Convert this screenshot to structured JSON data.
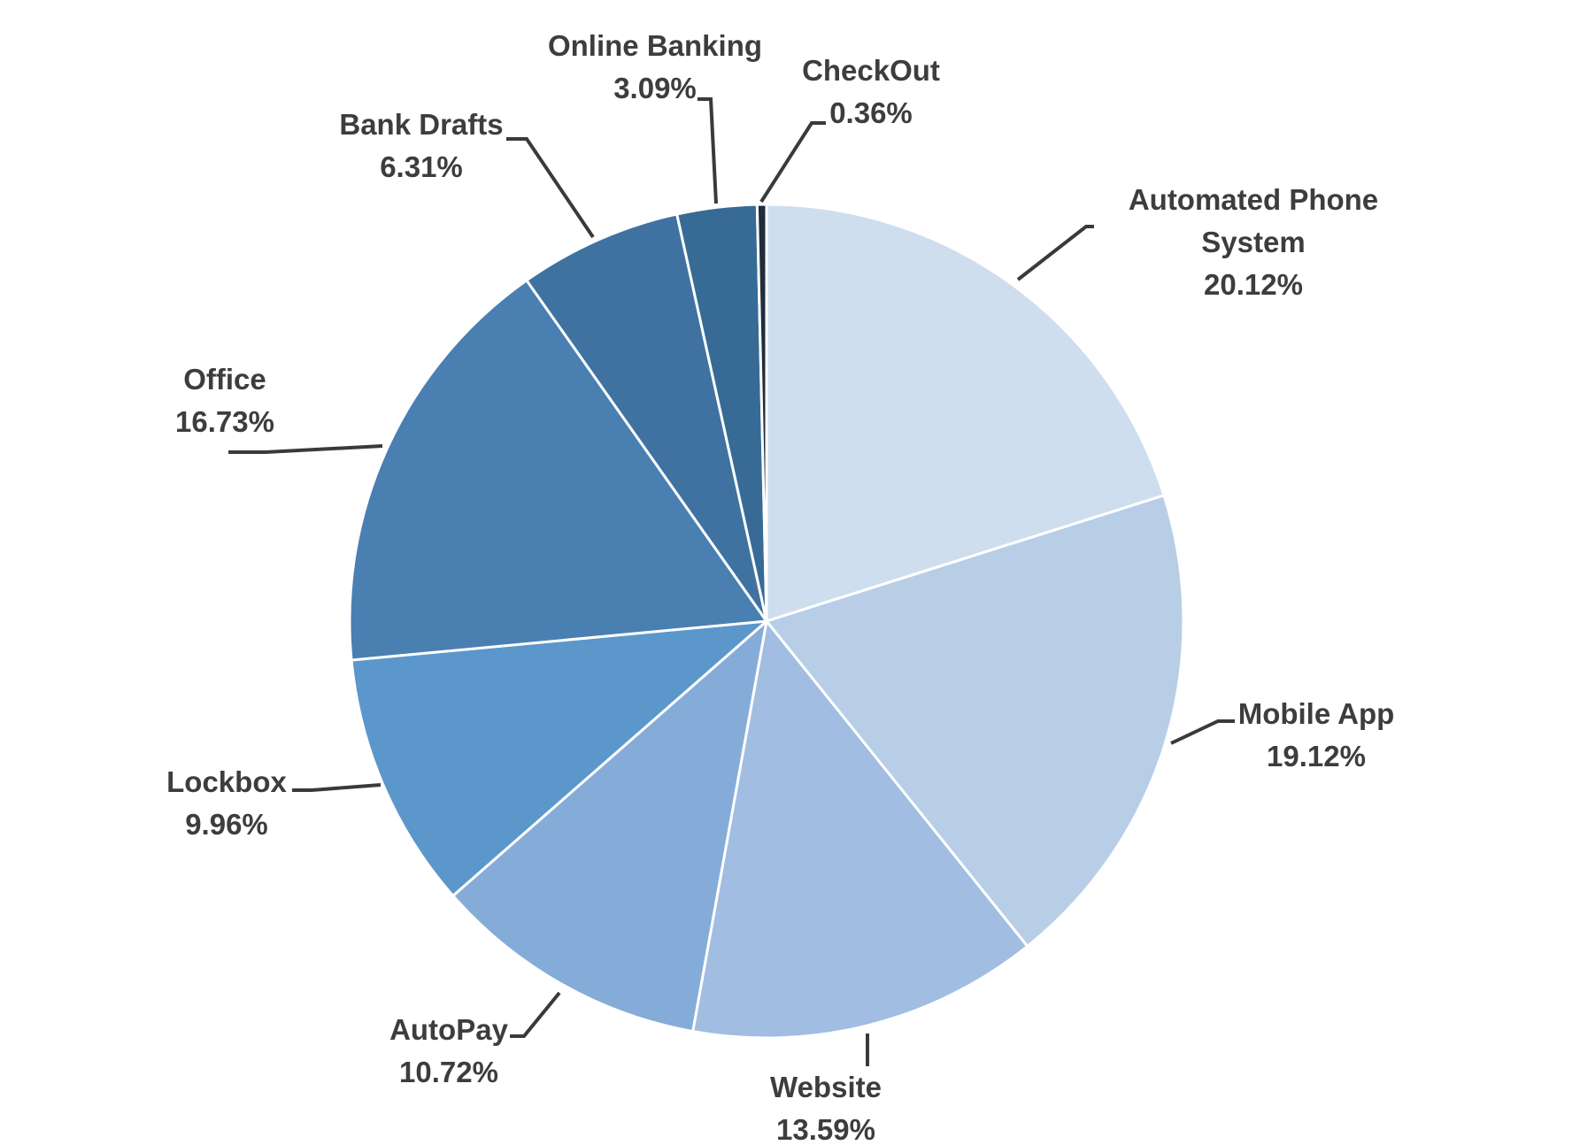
{
  "chart_data": {
    "type": "pie",
    "start": "12 o'clock",
    "direction": "clockwise",
    "slices": [
      {
        "name": "Automated Phone System",
        "value": 20.12,
        "value_label": "20.12%",
        "color": "#cfdeee",
        "label_lines": [
          "Automated Phone",
          "System",
          "20.12%"
        ]
      },
      {
        "name": "Mobile App",
        "value": 19.12,
        "value_label": "19.12%",
        "color": "#b8cee7",
        "label_lines": [
          "Mobile App",
          "19.12%"
        ]
      },
      {
        "name": "Website",
        "value": 13.59,
        "value_label": "13.59%",
        "color": "#a1bde1",
        "label_lines": [
          "Website",
          "13.59%"
        ]
      },
      {
        "name": "AutoPay",
        "value": 10.72,
        "value_label": "10.72%",
        "color": "#85acd8",
        "label_lines": [
          "AutoPay",
          "10.72%"
        ]
      },
      {
        "name": "Lockbox",
        "value": 9.96,
        "value_label": "9.96%",
        "color": "#5b97cb",
        "label_lines": [
          "Lockbox",
          "9.96%"
        ]
      },
      {
        "name": "Office",
        "value": 16.73,
        "value_label": "16.73%",
        "color": "#4a7fb2",
        "label_lines": [
          "Office",
          "16.73%"
        ]
      },
      {
        "name": "Bank Drafts",
        "value": 6.31,
        "value_label": "6.31%",
        "color": "#3f72a1",
        "label_lines": [
          "Bank Drafts",
          "6.31%"
        ]
      },
      {
        "name": "Online Banking",
        "value": 3.09,
        "value_label": "3.09%",
        "color": "#376b95",
        "label_lines": [
          "Online Banking",
          "3.09%"
        ]
      },
      {
        "name": "CheckOut",
        "value": 0.36,
        "value_label": "0.36%",
        "color": "#1f2d3d",
        "label_lines": [
          "CheckOut",
          "0.36%"
        ]
      }
    ],
    "legend": "none"
  }
}
